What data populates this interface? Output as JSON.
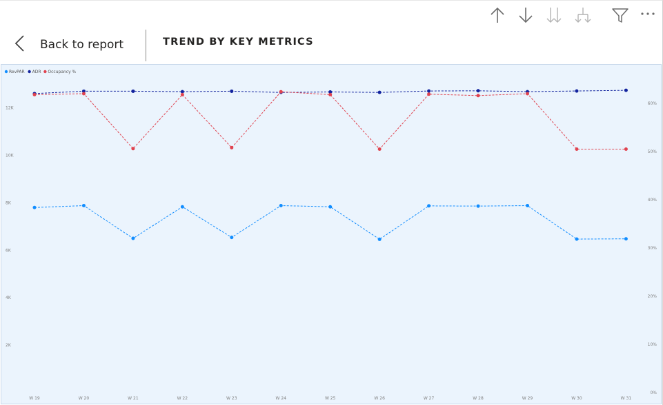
{
  "toolbar": {
    "icons": [
      "arrow-up-icon",
      "arrow-down-icon",
      "double-arrow-down-icon",
      "expand-hierarchy-icon",
      "filter-icon",
      "more-options-icon"
    ]
  },
  "header": {
    "back_label": "Back to report",
    "title": "TREND BY KEY METRICS"
  },
  "colors": {
    "revpar": "#118dff",
    "adr": "#12239e",
    "occupancy": "#e0434f",
    "background": "#ebf4fd"
  },
  "chart_data": {
    "type": "line",
    "categories": [
      "W 19",
      "W 20",
      "W 21",
      "W 22",
      "W 23",
      "W 24",
      "W 25",
      "W 26",
      "W 27",
      "W 28",
      "W 29",
      "W 30",
      "W 31"
    ],
    "legend_position": "top-left",
    "grid": false,
    "y_left": {
      "ticks": [
        "2K",
        "4K",
        "6K",
        "8K",
        "10K",
        "12K"
      ],
      "tick_values": [
        2000,
        4000,
        6000,
        8000,
        10000,
        12000
      ],
      "range": [
        0,
        12800
      ]
    },
    "y_right": {
      "ticks": [
        "0%",
        "10%",
        "20%",
        "30%",
        "40%",
        "50%",
        "60%"
      ],
      "tick_values": [
        0,
        10,
        20,
        30,
        40,
        50,
        60
      ],
      "range": [
        0,
        63
      ]
    },
    "series": [
      {
        "name": "RevPAR",
        "axis": "left",
        "color": "#118dff",
        "values": [
          7800,
          7880,
          6500,
          7830,
          6540,
          7880,
          7830,
          6460,
          7870,
          7860,
          7880,
          6470,
          6480
        ]
      },
      {
        "name": "ADR",
        "axis": "left",
        "color": "#12239e",
        "values": [
          12600,
          12700,
          12700,
          12680,
          12700,
          12650,
          12670,
          12650,
          12710,
          12720,
          12680,
          12710,
          12740
        ]
      },
      {
        "name": "Occupancy %",
        "axis": "right",
        "color": "#e0434f",
        "values": [
          61.8,
          62.0,
          50.6,
          61.8,
          50.8,
          62.4,
          61.8,
          50.5,
          61.9,
          61.6,
          62.0,
          50.5,
          50.5
        ]
      }
    ]
  }
}
